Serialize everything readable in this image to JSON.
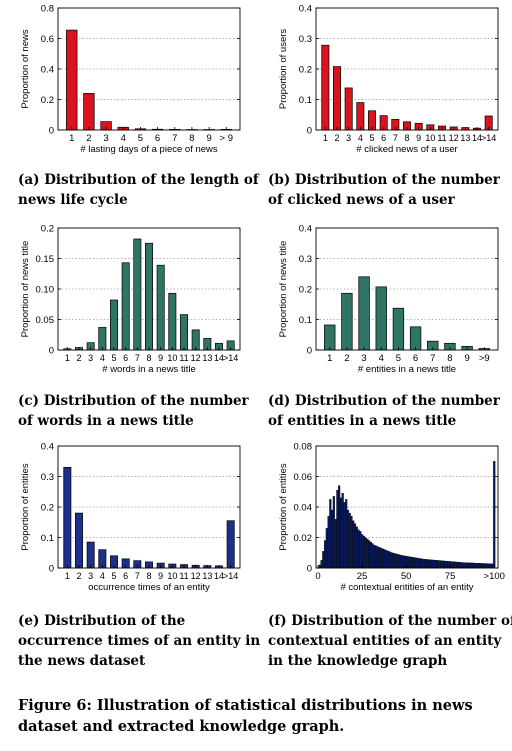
{
  "colors": {
    "red": "#d9141e",
    "green": "#2e7565",
    "blue": "#1d2f8a",
    "navy": "#0a1a5c"
  },
  "captions": [
    "(a) Distribution of the length of news life cycle",
    "(b) Distribution of the number of clicked news of a user",
    "(c) Distribution of the number of words in a news title",
    "(d) Distribution of the number of entities in a news title",
    "(e) Distribution of the occurrence times of an entity in the news dataset",
    "(f) Distribution of the number of contextual entities of an entity in the knowledge graph"
  ],
  "figure_caption": "Figure 6: Illustration of statistical distributions in news dataset and extracted knowledge graph.",
  "chart_data": [
    {
      "type": "bar",
      "color": "red",
      "xlabel": "# lasting days of a piece of news",
      "ylabel": "Proportion of news",
      "categories": [
        "1",
        "2",
        "3",
        "4",
        "5",
        "6",
        "7",
        "8",
        "9",
        ">9"
      ],
      "values": [
        0.655,
        0.24,
        0.055,
        0.018,
        0.008,
        0.005,
        0.004,
        0.003,
        0.003,
        0.004
      ],
      "ylim": [
        0,
        0.8
      ],
      "yticks": [
        "0",
        "0.2",
        "0.4",
        "0.6",
        "0.8"
      ],
      "yticks_values": [
        0,
        0.2,
        0.4,
        0.6,
        0.8
      ],
      "xtick_labels": [
        "1",
        "2",
        "3",
        "4",
        "5",
        "6",
        "7",
        "8",
        "9",
        "> 9"
      ],
      "grid": true
    },
    {
      "type": "bar",
      "color": "red",
      "xlabel": "# clicked news of a user",
      "ylabel": "Proportion of users",
      "categories": [
        "1",
        "2",
        "3",
        "4",
        "5",
        "6",
        "7",
        "8",
        "9",
        "10",
        "11",
        "12",
        "13",
        "14",
        ">14"
      ],
      "values": [
        0.278,
        0.208,
        0.138,
        0.09,
        0.063,
        0.047,
        0.035,
        0.027,
        0.022,
        0.017,
        0.013,
        0.01,
        0.008,
        0.006,
        0.046
      ],
      "ylim": [
        0,
        0.4
      ],
      "yticks": [
        "0",
        "0.1",
        "0.2",
        "0.3",
        "0.4"
      ],
      "yticks_values": [
        0,
        0.1,
        0.2,
        0.3,
        0.4
      ],
      "xtick_labels": [
        "1",
        "2",
        "3",
        "4",
        "5",
        "6",
        "7",
        "8",
        "9",
        "10",
        "11",
        "12",
        "13",
        "14",
        ">14"
      ],
      "grid": true
    },
    {
      "type": "bar",
      "color": "green",
      "xlabel": "# words in a news title",
      "ylabel": "Proportion of news title",
      "categories": [
        "1",
        "2",
        "3",
        "4",
        "5",
        "6",
        "7",
        "8",
        "9",
        "10",
        "11",
        "12",
        "13",
        "14",
        ">14"
      ],
      "values": [
        0.002,
        0.004,
        0.012,
        0.037,
        0.082,
        0.143,
        0.182,
        0.175,
        0.139,
        0.093,
        0.058,
        0.033,
        0.019,
        0.011,
        0.015
      ],
      "ylim": [
        0,
        0.2
      ],
      "yticks": [
        "0",
        "0.05",
        "0.10",
        "0.15",
        "0.2"
      ],
      "yticks_values": [
        0,
        0.05,
        0.1,
        0.15,
        0.2
      ],
      "xtick_labels": [
        "1",
        "2",
        "3",
        "4",
        "5",
        "6",
        "7",
        "8",
        "9",
        "10",
        "11",
        "12",
        "13",
        "14",
        ">14"
      ],
      "grid": true
    },
    {
      "type": "bar",
      "color": "green",
      "xlabel": "# entities in a news title",
      "ylabel": "Proportion of news title",
      "categories": [
        "1",
        "2",
        "3",
        "4",
        "5",
        "6",
        "7",
        "8",
        "9",
        ">9"
      ],
      "values": [
        0.082,
        0.186,
        0.24,
        0.207,
        0.137,
        0.076,
        0.029,
        0.022,
        0.012,
        0.005
      ],
      "ylim": [
        0,
        0.4
      ],
      "yticks": [
        "0",
        "0.1",
        "0.2",
        "0.3",
        "0.4"
      ],
      "yticks_values": [
        0,
        0.1,
        0.2,
        0.3,
        0.4
      ],
      "xtick_labels": [
        "1",
        "2",
        "3",
        "4",
        "5",
        "6",
        "7",
        "8",
        "9",
        ">9"
      ],
      "grid": true
    },
    {
      "type": "bar",
      "color": "blue",
      "xlabel": "occurrence times of an entity",
      "ylabel": "Proportion of entities",
      "categories": [
        "1",
        "2",
        "3",
        "4",
        "5",
        "6",
        "7",
        "8",
        "9",
        "10",
        "11",
        "12",
        "13",
        "14",
        ">14"
      ],
      "values": [
        0.33,
        0.18,
        0.085,
        0.06,
        0.04,
        0.03,
        0.024,
        0.02,
        0.016,
        0.013,
        0.011,
        0.009,
        0.008,
        0.007,
        0.155
      ],
      "ylim": [
        0,
        0.4
      ],
      "yticks": [
        "0",
        "0.1",
        "0.2",
        "0.3",
        "0.4"
      ],
      "yticks_values": [
        0,
        0.1,
        0.2,
        0.3,
        0.4
      ],
      "xtick_labels": [
        "1",
        "2",
        "3",
        "4",
        "5",
        "6",
        "7",
        "8",
        "9",
        "10",
        "11",
        "12",
        "13",
        "14",
        ">14"
      ],
      "grid": true
    },
    {
      "type": "bar",
      "color": "navy",
      "dense": true,
      "xlabel": "# contextual entities of an entity",
      "ylabel": "Proportion of entities",
      "x": [
        1,
        2,
        3,
        4,
        5,
        6,
        7,
        8,
        9,
        10,
        11,
        12,
        13,
        14,
        15,
        16,
        17,
        18,
        19,
        20,
        21,
        22,
        23,
        24,
        25,
        26,
        27,
        28,
        29,
        30,
        31,
        32,
        33,
        34,
        35,
        36,
        37,
        38,
        39,
        40,
        41,
        42,
        43,
        44,
        45,
        46,
        47,
        48,
        49,
        50,
        51,
        52,
        53,
        54,
        55,
        56,
        57,
        58,
        59,
        60,
        61,
        62,
        63,
        64,
        65,
        66,
        67,
        68,
        69,
        70,
        71,
        72,
        73,
        74,
        75,
        76,
        77,
        78,
        79,
        80,
        81,
        82,
        83,
        84,
        85,
        86,
        87,
        88,
        89,
        90,
        91,
        92,
        93,
        94,
        95,
        96,
        97,
        98,
        99,
        100
      ],
      "values": [
        0.002,
        0.005,
        0.011,
        0.018,
        0.026,
        0.034,
        0.045,
        0.038,
        0.047,
        0.032,
        0.051,
        0.054,
        0.046,
        0.049,
        0.043,
        0.045,
        0.038,
        0.036,
        0.034,
        0.031,
        0.029,
        0.027,
        0.025,
        0.024,
        0.022,
        0.021,
        0.02,
        0.019,
        0.018,
        0.017,
        0.016,
        0.015,
        0.0145,
        0.014,
        0.0135,
        0.013,
        0.0125,
        0.012,
        0.0115,
        0.011,
        0.0105,
        0.01,
        0.0097,
        0.0094,
        0.0091,
        0.0088,
        0.0085,
        0.0082,
        0.008,
        0.0078,
        0.0076,
        0.0074,
        0.0072,
        0.007,
        0.0068,
        0.0066,
        0.0064,
        0.0062,
        0.006,
        0.0058,
        0.0057,
        0.0056,
        0.0055,
        0.0054,
        0.0053,
        0.0052,
        0.0051,
        0.005,
        0.0049,
        0.0048,
        0.0047,
        0.0046,
        0.0045,
        0.0044,
        0.0043,
        0.0042,
        0.0041,
        0.004,
        0.0039,
        0.0038,
        0.0037,
        0.0036,
        0.0035,
        0.0035,
        0.0034,
        0.0034,
        0.0033,
        0.0033,
        0.0032,
        0.0032,
        0.0031,
        0.0031,
        0.003,
        0.003,
        0.0029,
        0.0029,
        0.0028,
        0.0028,
        0.0027,
        0.07
      ],
      "ylim": [
        0,
        0.08
      ],
      "yticks": [
        "0",
        "0.02",
        "0.04",
        "0.06",
        "0.08"
      ],
      "yticks_values": [
        0,
        0.02,
        0.04,
        0.06,
        0.08
      ],
      "xtick_labels": [
        "0",
        "25",
        "50",
        "75",
        ">100"
      ],
      "xtick_values": [
        0,
        25,
        50,
        75,
        100
      ],
      "xlim": [
        0,
        101
      ],
      "grid": true
    }
  ]
}
